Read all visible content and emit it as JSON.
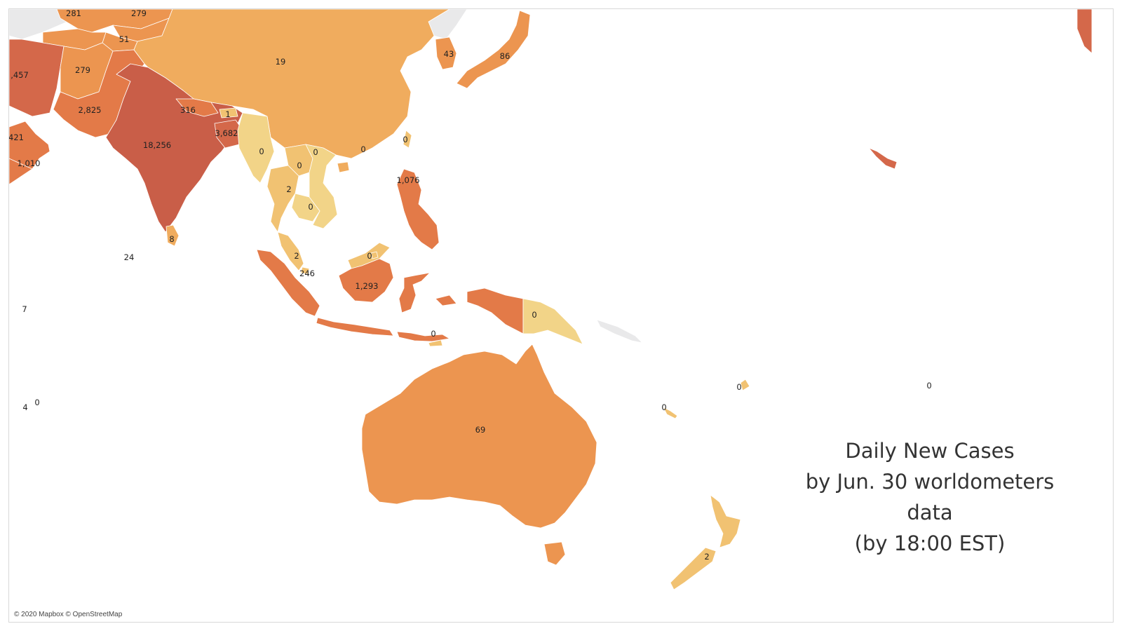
{
  "colors": {
    "c0": "#f2d488",
    "c1": "#f1c272",
    "c2": "#f0ac5e",
    "c3": "#ec9550",
    "c4": "#e37a48",
    "c5": "#d4684a",
    "c6": "#c95e48",
    "gray": "#e9e9ea",
    "water": "#ffffff"
  },
  "title": {
    "line1": "Daily New Cases",
    "line2": "by Jun. 30 worldometers",
    "line3": "data",
    "line4": "(by 18:00 EST)"
  },
  "attribution": "© 2020 Mapbox © OpenStreetMap",
  "labels": [
    {
      "id": "kazakhstan",
      "text": "281"
    },
    {
      "id": "kyrgyzstan",
      "text": "279"
    },
    {
      "id": "tajikistan",
      "text": "51"
    },
    {
      "id": "iran",
      "text": ",457"
    },
    {
      "id": "afghanistan",
      "text": "279"
    },
    {
      "id": "china",
      "text": "19"
    },
    {
      "id": "south-korea",
      "text": "43"
    },
    {
      "id": "japan",
      "text": "86"
    },
    {
      "id": "pakistan",
      "text": "2,825"
    },
    {
      "id": "nepal",
      "text": "316"
    },
    {
      "id": "bhutan",
      "text": "1"
    },
    {
      "id": "bangladesh",
      "text": "3,682"
    },
    {
      "id": "oman",
      "text": "421"
    },
    {
      "id": "india",
      "text": "18,256"
    },
    {
      "id": "yemen",
      "text": "1,010"
    },
    {
      "id": "myanmar",
      "text": "0"
    },
    {
      "id": "laos",
      "text": "0"
    },
    {
      "id": "hong-kong",
      "text": "0"
    },
    {
      "id": "taiwan",
      "text": "0"
    },
    {
      "id": "vietnam",
      "text": "0"
    },
    {
      "id": "philippines",
      "text": "1,076"
    },
    {
      "id": "thailand",
      "text": "2"
    },
    {
      "id": "cambodia",
      "text": "0"
    },
    {
      "id": "sri-lanka",
      "text": "8"
    },
    {
      "id": "maldives",
      "text": "24"
    },
    {
      "id": "brunei",
      "text": "0"
    },
    {
      "id": "malaysia",
      "text": "2"
    },
    {
      "id": "singapore",
      "text": "246"
    },
    {
      "id": "indonesia",
      "text": "1,293"
    },
    {
      "id": "papua-new-guinea",
      "text": "0"
    },
    {
      "id": "timor-leste",
      "text": "0"
    },
    {
      "id": "seychelles",
      "text": "7"
    },
    {
      "id": "mauritius",
      "text": "4"
    },
    {
      "id": "reunion",
      "text": "0"
    },
    {
      "id": "vanuatu",
      "text": "0"
    },
    {
      "id": "fiji",
      "text": "0"
    },
    {
      "id": "tonga",
      "text": "0"
    },
    {
      "id": "australia",
      "text": "69"
    },
    {
      "id": "new-zealand",
      "text": "2"
    }
  ]
}
